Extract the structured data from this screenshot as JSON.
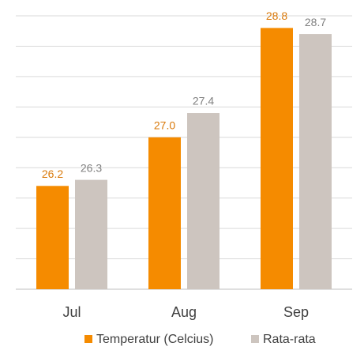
{
  "chart_data": {
    "type": "bar",
    "categories": [
      "Jul",
      "Aug",
      "Sep"
    ],
    "series": [
      {
        "name": "Temperatur (Celcius)",
        "color": "#f58b00",
        "label_color": "#d9790a",
        "values": [
          26.2,
          27.0,
          28.8
        ],
        "value_labels": [
          "26.2",
          "27.0",
          "28.8"
        ]
      },
      {
        "name": "Rata-rata",
        "color": "#cdc5bf",
        "label_color": "#808080",
        "values": [
          26.3,
          27.4,
          28.7
        ],
        "value_labels": [
          "26.3",
          "27.4",
          "28.7"
        ]
      }
    ],
    "ylim": [
      24.5,
      29
    ],
    "yticks": [
      24.5,
      25,
      25.5,
      26,
      26.5,
      27,
      27.5,
      28,
      28.5,
      29
    ],
    "grid": true,
    "legend": "bottom"
  }
}
